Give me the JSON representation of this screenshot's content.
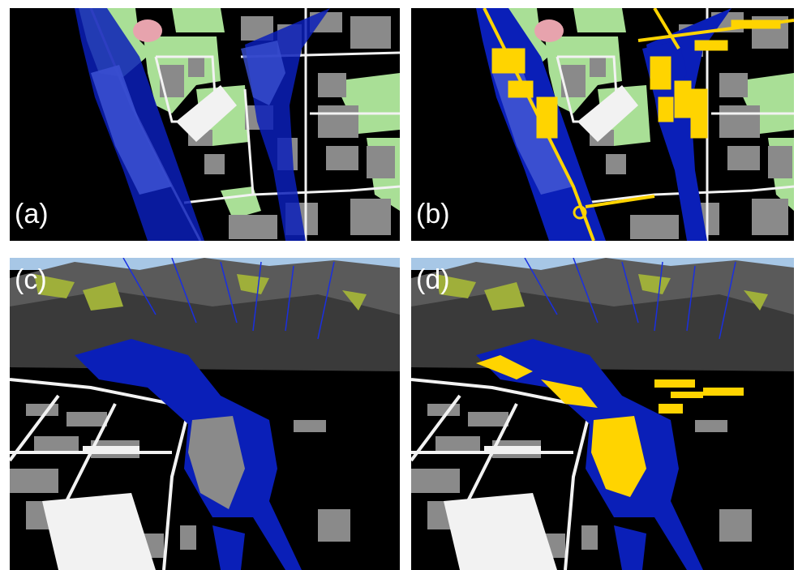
{
  "panels": [
    {
      "id": "a",
      "label": "(a)",
      "view": "plan",
      "overlay": "flood-extent"
    },
    {
      "id": "b",
      "label": "(b)",
      "view": "plan",
      "overlay": "flood-extent-with-affected-assets"
    },
    {
      "id": "c",
      "label": "(c)",
      "view": "perspective",
      "overlay": "flood-extent"
    },
    {
      "id": "d",
      "label": "(d)",
      "view": "perspective",
      "overlay": "flood-extent-with-affected-assets"
    }
  ],
  "colors": {
    "background": "#000000",
    "flood": "#0a1fb8",
    "flood_shallow": "#3a4fd0",
    "buildings": "#8a8a8a",
    "roads": "#f2f2f2",
    "green_areas": "#a9df96",
    "pink_area": "#e7a3ad",
    "affected_assets": "#ffd400",
    "sky": "#a7c7e6",
    "mountains": "#5a5a5a",
    "alpine_meadows": "#9faf3a"
  }
}
